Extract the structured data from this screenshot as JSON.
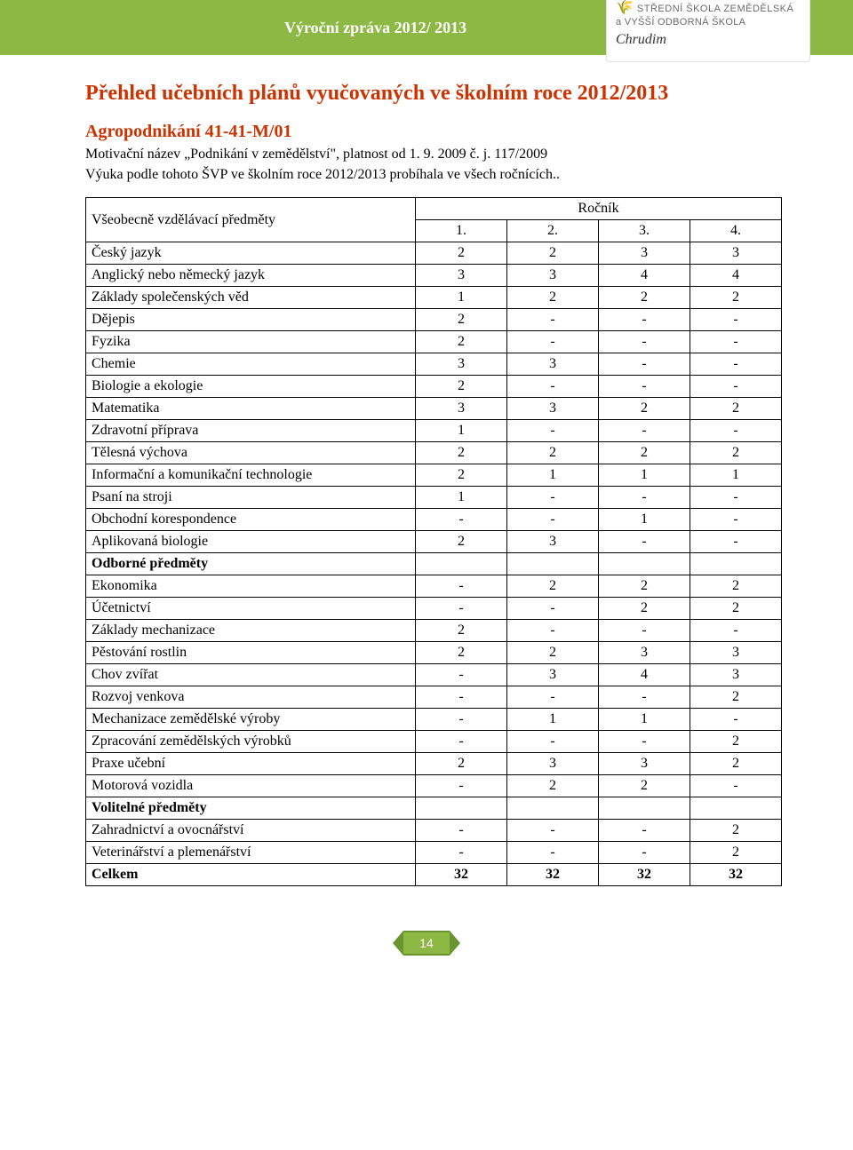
{
  "header": {
    "band_title": "Výroční zpráva 2012/ 2013",
    "logo_line1": "STŘEDNÍ ŠKOLA ZEMĚDĚLSKÁ",
    "logo_line2": "a VYŠŠÍ ODBORNÁ ŠKOLA",
    "logo_line3": "Chrudim"
  },
  "title": "Přehled učebních plánů vyučovaných ve školním roce 2012/2013",
  "subtitle": "Agropodnikání 41-41-M/01",
  "intro_line1": "Motivační název „Podnikání v zemědělství\", platnost od 1. 9. 2009 č. j. 117/2009",
  "intro_line2": "Výuka podle tohoto ŠVP ve školním roce 2012/2013 probíhala ve všech ročnících..",
  "table": {
    "header_subject": "Všeobecně vzdělávací předměty",
    "header_group": "Ročník",
    "year_labels": [
      "1.",
      "2.",
      "3.",
      "4."
    ],
    "rows": [
      {
        "name": "Český jazyk",
        "vals": [
          "2",
          "2",
          "3",
          "3"
        ]
      },
      {
        "name": "Anglický nebo německý jazyk",
        "vals": [
          "3",
          "3",
          "4",
          "4"
        ]
      },
      {
        "name": "Základy společenských věd",
        "vals": [
          "1",
          "2",
          "2",
          "2"
        ]
      },
      {
        "name": "Dějepis",
        "vals": [
          "2",
          "-",
          "-",
          "-"
        ]
      },
      {
        "name": "Fyzika",
        "vals": [
          "2",
          "-",
          "-",
          "-"
        ]
      },
      {
        "name": "Chemie",
        "vals": [
          "3",
          "3",
          "-",
          "-"
        ]
      },
      {
        "name": "Biologie a ekologie",
        "vals": [
          "2",
          "-",
          "-",
          "-"
        ]
      },
      {
        "name": "Matematika",
        "vals": [
          "3",
          "3",
          "2",
          "2"
        ]
      },
      {
        "name": "Zdravotní příprava",
        "vals": [
          "1",
          "-",
          "-",
          "-"
        ]
      },
      {
        "name": "Tělesná výchova",
        "vals": [
          "2",
          "2",
          "2",
          "2"
        ]
      },
      {
        "name": "Informační a komunikační technologie",
        "vals": [
          "2",
          "1",
          "1",
          "1"
        ]
      },
      {
        "name": "Psaní na stroji",
        "vals": [
          "1",
          "-",
          "-",
          "-"
        ]
      },
      {
        "name": "Obchodní korespondence",
        "vals": [
          "-",
          "-",
          "1",
          "-"
        ]
      },
      {
        "name": "Aplikovaná biologie",
        "vals": [
          "2",
          "3",
          "-",
          "-"
        ]
      },
      {
        "name": "Odborné předměty",
        "section": true,
        "vals": [
          "",
          "",
          "",
          ""
        ]
      },
      {
        "name": "Ekonomika",
        "vals": [
          "-",
          "2",
          "2",
          "2"
        ]
      },
      {
        "name": "Účetnictví",
        "vals": [
          "-",
          "-",
          "2",
          "2"
        ]
      },
      {
        "name": "Základy mechanizace",
        "vals": [
          "2",
          "-",
          "-",
          "-"
        ]
      },
      {
        "name": "Pěstování rostlin",
        "vals": [
          "2",
          "2",
          "3",
          "3"
        ]
      },
      {
        "name": "Chov zvířat",
        "vals": [
          "-",
          "3",
          "4",
          "3"
        ]
      },
      {
        "name": "Rozvoj venkova",
        "vals": [
          "-",
          "-",
          "-",
          "2"
        ]
      },
      {
        "name": "Mechanizace zemědělské výroby",
        "vals": [
          "-",
          "1",
          "1",
          "-"
        ]
      },
      {
        "name": "Zpracování zemědělských výrobků",
        "vals": [
          "-",
          "-",
          "-",
          "2"
        ]
      },
      {
        "name": "Praxe učební",
        "vals": [
          "2",
          "3",
          "3",
          "2"
        ]
      },
      {
        "name": "Motorová vozidla",
        "vals": [
          "-",
          "2",
          "2",
          "-"
        ]
      },
      {
        "name": "Volitelné předměty",
        "section": true,
        "vals": [
          "",
          "",
          "",
          ""
        ]
      },
      {
        "name": "Zahradnictví a ovocnářství",
        "vals": [
          "-",
          "-",
          "-",
          "2"
        ]
      },
      {
        "name": "Veterinářství a plemenářství",
        "vals": [
          "-",
          "-",
          "-",
          "2"
        ]
      },
      {
        "name": "Celkem",
        "section": true,
        "vals": [
          "32",
          "32",
          "32",
          "32"
        ]
      }
    ]
  },
  "footer": {
    "page_number": "14"
  },
  "colors": {
    "band_bg": "#8db843",
    "heading": "#cc3300",
    "border": "#000000",
    "text": "#000000",
    "background": "#ffffff"
  }
}
